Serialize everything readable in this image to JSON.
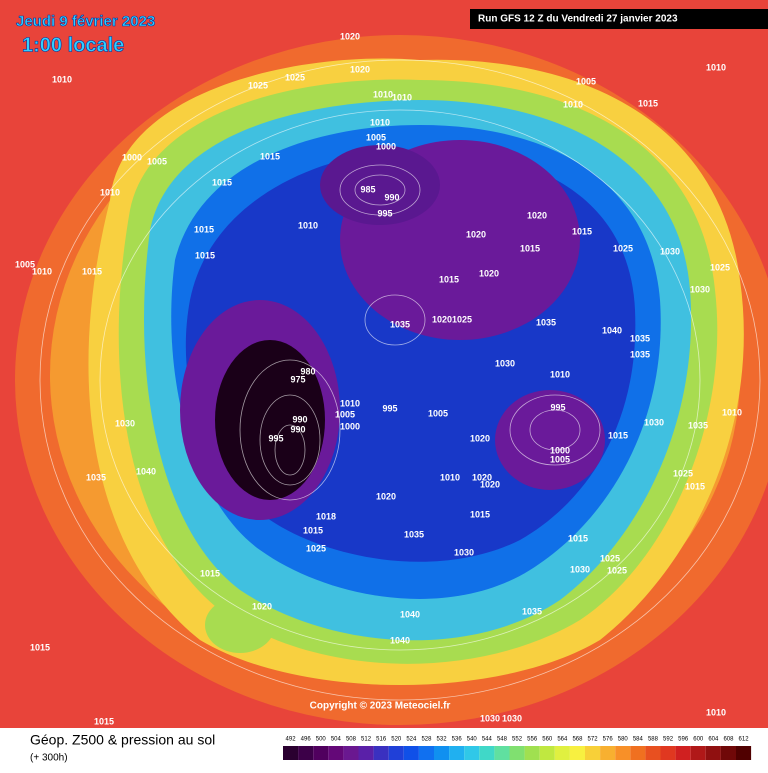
{
  "header": {
    "title": "Jeudi 9 février 2023",
    "subtitle": "1:00 locale",
    "run": "Run GFS 12 Z du Vendredi 27 janvier 2023"
  },
  "copyright": "Copyright © 2023 Meteociel.fr",
  "footer": {
    "title": "Géop. Z500 & pression au sol",
    "lead": "(+ 300h)"
  },
  "color_scale": {
    "labels": [
      492,
      496,
      500,
      504,
      508,
      512,
      516,
      520,
      524,
      528,
      532,
      536,
      540,
      544,
      548,
      552,
      556,
      560,
      564,
      568,
      572,
      576,
      580,
      584,
      588,
      592,
      596,
      600,
      604,
      608,
      612
    ],
    "colors": [
      "#2a0030",
      "#3c0048",
      "#50005e",
      "#640878",
      "#6a1890",
      "#5a20a8",
      "#3a30c0",
      "#2040d8",
      "#1050e8",
      "#1070f0",
      "#1090f0",
      "#20b0f0",
      "#30c8e8",
      "#40d8c8",
      "#60e0a0",
      "#80e070",
      "#a0e050",
      "#c0e840",
      "#e0f040",
      "#f8f040",
      "#f8d038",
      "#f8b030",
      "#f89028",
      "#f07020",
      "#e85020",
      "#e03820",
      "#d02020",
      "#b01818",
      "#901010",
      "#700808",
      "#500000"
    ]
  },
  "isobar_labels": [
    "1020",
    "1020",
    "1010",
    "1025",
    "1025",
    "1005",
    "1010",
    "1010",
    "1010",
    "1010",
    "1015",
    "1010",
    "1005",
    "1000",
    "1000",
    "1005",
    "1015",
    "1015",
    "1010",
    "985",
    "990",
    "995",
    "1020",
    "1015",
    "1015",
    "1010",
    "1020",
    "1015",
    "1025",
    "1030",
    "1005",
    "1010",
    "1015",
    "1015",
    "1020",
    "1015",
    "1025",
    "1030",
    "1035",
    "1020",
    "1025",
    "1035",
    "1040",
    "1035",
    "1035",
    "980",
    "975",
    "1010",
    "1005",
    "1000",
    "995",
    "990",
    "1005",
    "995",
    "1010",
    "1030",
    "990",
    "995",
    "1020",
    "1000",
    "1005",
    "1015",
    "1030",
    "1030",
    "1040",
    "1035",
    "1010",
    "1020",
    "1020",
    "1020",
    "1015",
    "1018",
    "1015",
    "1025",
    "1035",
    "1030",
    "1015",
    "1025",
    "1030",
    "1025",
    "1015",
    "1020",
    "1035",
    "1040",
    "1040",
    "1015",
    "1015",
    "1030",
    "1030",
    "1010",
    "1025",
    "1015",
    "1010",
    "1035"
  ]
}
